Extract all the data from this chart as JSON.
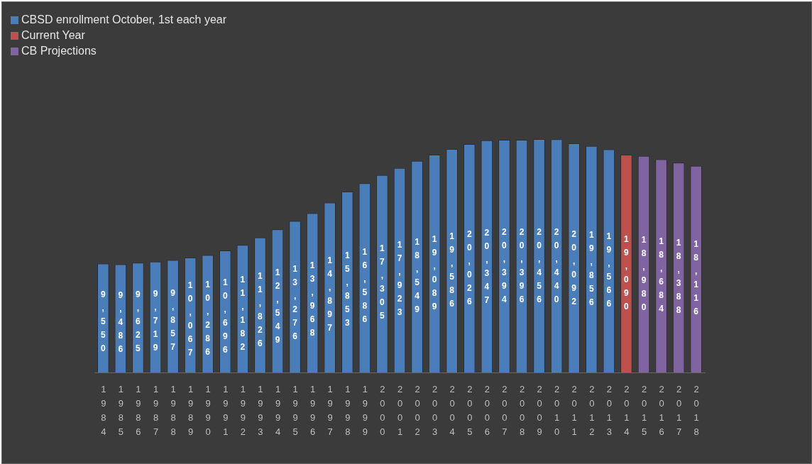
{
  "chart_data": {
    "type": "bar",
    "categories": [
      "1984",
      "1985",
      "1986",
      "1987",
      "1988",
      "1989",
      "1990",
      "1991",
      "1992",
      "1993",
      "1994",
      "1995",
      "1996",
      "1997",
      "1998",
      "1999",
      "2000",
      "2001",
      "2002",
      "2003",
      "2004",
      "2005",
      "2006",
      "2007",
      "2008",
      "2009",
      "2010",
      "2011",
      "2012",
      "2013",
      "2014",
      "2015",
      "2016",
      "2017",
      "2018"
    ],
    "series": [
      {
        "name": "CBSD enrollment October, 1st each year",
        "color": "#4a7ebb",
        "values": [
          9550,
          9486,
          9625,
          9719,
          9857,
          10067,
          10286,
          10696,
          11182,
          11826,
          12549,
          13276,
          13968,
          14897,
          15853,
          16586,
          17305,
          17923,
          18549,
          19089,
          19586,
          20026,
          20347,
          20394,
          20396,
          20456,
          20440,
          20092,
          19856,
          19566,
          null,
          null,
          null,
          null,
          null
        ],
        "value_labels": [
          "9,550",
          "9,486",
          "9,625",
          "9,719",
          "9,857",
          "10,067",
          "10,286",
          "10,696",
          "11,182",
          "11,826",
          "12,549",
          "13,276",
          "13,968",
          "14,897",
          "15,853",
          "16,586",
          "17,305",
          "17,923",
          "18,549",
          "19,089",
          "19,586",
          "20,026",
          "20,347",
          "20,394",
          "20,396",
          "20,456",
          "20,440",
          "20,092",
          "19,856",
          "19,566",
          null,
          null,
          null,
          null,
          null
        ]
      },
      {
        "name": "Current Year",
        "color": "#c0504d",
        "values": [
          null,
          null,
          null,
          null,
          null,
          null,
          null,
          null,
          null,
          null,
          null,
          null,
          null,
          null,
          null,
          null,
          null,
          null,
          null,
          null,
          null,
          null,
          null,
          null,
          null,
          null,
          null,
          null,
          null,
          null,
          19090,
          null,
          null,
          null,
          null
        ],
        "value_labels": [
          null,
          null,
          null,
          null,
          null,
          null,
          null,
          null,
          null,
          null,
          null,
          null,
          null,
          null,
          null,
          null,
          null,
          null,
          null,
          null,
          null,
          null,
          null,
          null,
          null,
          null,
          null,
          null,
          null,
          null,
          "19,090",
          null,
          null,
          null,
          null
        ]
      },
      {
        "name": "CB Projections",
        "color": "#8064a2",
        "values": [
          null,
          null,
          null,
          null,
          null,
          null,
          null,
          null,
          null,
          null,
          null,
          null,
          null,
          null,
          null,
          null,
          null,
          null,
          null,
          null,
          null,
          null,
          null,
          null,
          null,
          null,
          null,
          null,
          null,
          null,
          null,
          18980,
          18684,
          18388,
          18116
        ],
        "value_labels": [
          null,
          null,
          null,
          null,
          null,
          null,
          null,
          null,
          null,
          null,
          null,
          null,
          null,
          null,
          null,
          null,
          null,
          null,
          null,
          null,
          null,
          null,
          null,
          null,
          null,
          null,
          null,
          null,
          null,
          null,
          null,
          "18,980",
          "18,684",
          "18,388",
          "18,116"
        ]
      }
    ],
    "legend": "top left",
    "tick_labels": "x"
  }
}
